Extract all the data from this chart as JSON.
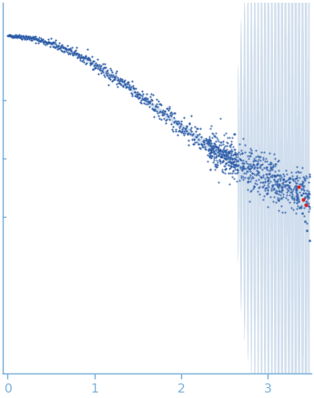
{
  "title": "",
  "xlabel": "",
  "ylabel": "",
  "xlim": [
    -0.05,
    3.5
  ],
  "ylim": [
    -0.8,
    1.1
  ],
  "x_ticks": [
    0,
    1,
    2,
    3
  ],
  "background_color": "#ffffff",
  "dot_color_blue": "#2b5ba8",
  "dot_color_red": "#dd2222",
  "error_band_color": "#b8cde4",
  "spine_color": "#7ab0d8",
  "tick_label_color": "#7ab0d8",
  "seed": 42,
  "I0": 0.93,
  "Rg": 0.72
}
